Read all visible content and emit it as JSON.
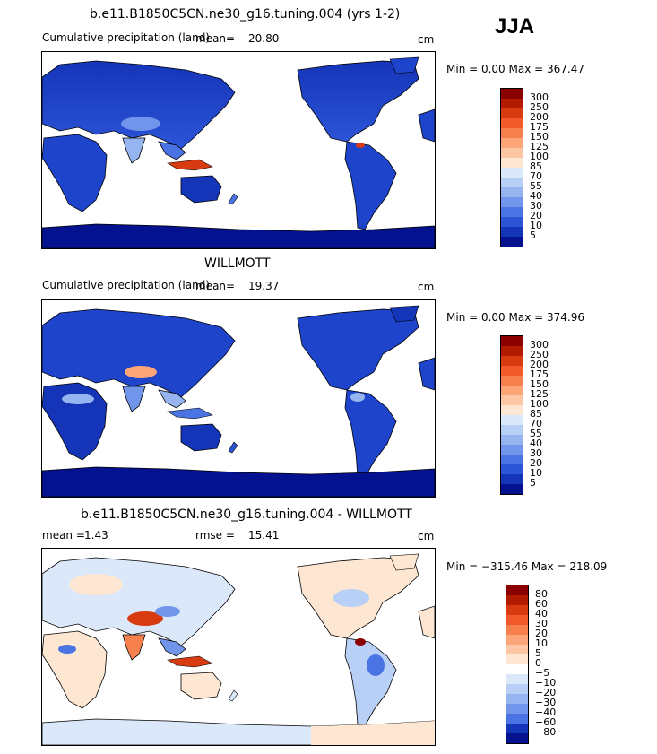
{
  "season": "JJA",
  "panels": [
    {
      "title": "b.e11.B1850C5CN.ne30_g16.tuning.004 (yrs 1-2)",
      "left_label": "Cumulative precipitation (land)",
      "mean_label": "mean=",
      "mean_value": "20.80",
      "units": "cm",
      "minmax": "Min =   0.00 Max = 367.47",
      "colorbar": {
        "labels": [
          "300",
          "250",
          "200",
          "175",
          "150",
          "125",
          "100",
          "85",
          "70",
          "55",
          "40",
          "30",
          "20",
          "10",
          "5"
        ],
        "colors": [
          "#8b0000",
          "#b31b00",
          "#d83a12",
          "#f05a2a",
          "#f7804f",
          "#fba579",
          "#fdc6a4",
          "#fde6d2",
          "#dbe8fa",
          "#b9d0f6",
          "#96b5f0",
          "#7095ea",
          "#4a73e4",
          "#2c54d6",
          "#1535b9",
          "#05128f"
        ]
      }
    },
    {
      "title": "WILLMOTT",
      "left_label": "Cumulative precipitation (land)",
      "mean_label": "mean=",
      "mean_value": "19.37",
      "units": "cm",
      "minmax": "Min =   0.00 Max = 374.96",
      "colorbar": {
        "labels": [
          "300",
          "250",
          "200",
          "175",
          "150",
          "125",
          "100",
          "85",
          "70",
          "55",
          "40",
          "30",
          "20",
          "10",
          "5"
        ],
        "colors": [
          "#8b0000",
          "#b31b00",
          "#d83a12",
          "#f05a2a",
          "#f7804f",
          "#fba579",
          "#fdc6a4",
          "#fde6d2",
          "#dbe8fa",
          "#b9d0f6",
          "#96b5f0",
          "#7095ea",
          "#4a73e4",
          "#2c54d6",
          "#1535b9",
          "#05128f"
        ]
      }
    },
    {
      "title": "b.e11.B1850C5CN.ne30_g16.tuning.004 - WILLMOTT",
      "left_label": "mean =",
      "mean_label": "1.43",
      "rmse_label": "rmse =",
      "rmse_value": "15.41",
      "units": "cm",
      "minmax": "Min = −315.46 Max = 218.09",
      "colorbar": {
        "labels": [
          "80",
          "60",
          "40",
          "30",
          "20",
          "10",
          "5",
          "0",
          "−5",
          "−10",
          "−20",
          "−30",
          "−40",
          "−60",
          "−80"
        ],
        "colors": [
          "#8b0000",
          "#b31b00",
          "#d83a12",
          "#f05a2a",
          "#f7804f",
          "#fba579",
          "#fdc6a4",
          "#fde6d2",
          "#ffffff",
          "#dbe8fa",
          "#b9d0f6",
          "#96b5f0",
          "#7095ea",
          "#4a73e4",
          "#1535b9",
          "#05128f"
        ]
      }
    }
  ]
}
